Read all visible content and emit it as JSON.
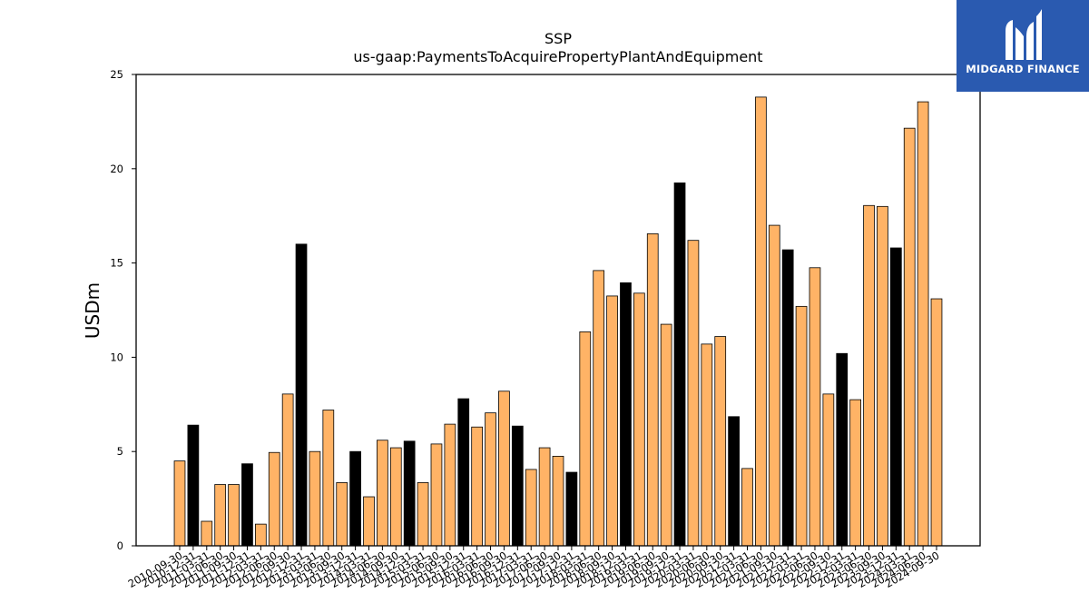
{
  "chart_data": {
    "type": "bar",
    "title": "SSP",
    "subtitle": "us-gaap:PaymentsToAcquirePropertyPlantAndEquipment",
    "xlabel": "",
    "ylabel": "USDm",
    "ylim": [
      0,
      25
    ],
    "yticks": [
      0,
      5,
      10,
      15,
      20,
      25
    ],
    "grid": false,
    "legend": "none",
    "colors": {
      "quarter": "#ffb366",
      "fiscal_year": "#000000",
      "edge": "#000000"
    },
    "categories": [
      "2010-09-30",
      "2010-12-31",
      "2011-03-31",
      "2011-06-30",
      "2011-09-30",
      "2011-12-31",
      "2012-03-31",
      "2012-06-30",
      "2012-09-30",
      "2012-12-31",
      "2013-03-31",
      "2013-06-30",
      "2013-09-30",
      "2013-12-31",
      "2014-03-31",
      "2014-06-30",
      "2014-09-30",
      "2014-12-31",
      "2015-03-31",
      "2015-06-30",
      "2015-09-30",
      "2015-12-31",
      "2016-03-31",
      "2016-06-30",
      "2016-09-30",
      "2016-12-31",
      "2017-03-31",
      "2017-06-30",
      "2017-09-30",
      "2017-12-31",
      "2018-03-31",
      "2018-06-30",
      "2018-09-30",
      "2018-12-31",
      "2019-03-31",
      "2019-06-30",
      "2019-09-30",
      "2019-12-31",
      "2020-03-31",
      "2020-06-30",
      "2020-09-30",
      "2020-12-31",
      "2021-03-31",
      "2021-06-30",
      "2021-09-30",
      "2021-12-31",
      "2022-03-31",
      "2022-06-30",
      "2022-09-30",
      "2022-12-31",
      "2023-03-31",
      "2023-06-30",
      "2023-09-30",
      "2023-12-31",
      "2024-03-31",
      "2024-06-30",
      "2024-09-30"
    ],
    "values": [
      4.5,
      6.4,
      1.3,
      3.25,
      3.25,
      4.35,
      1.15,
      4.95,
      8.05,
      16.0,
      5.0,
      7.2,
      3.35,
      5.0,
      2.6,
      5.6,
      5.2,
      5.55,
      3.35,
      5.4,
      6.45,
      7.8,
      6.3,
      7.05,
      8.2,
      6.35,
      4.05,
      5.2,
      4.75,
      3.9,
      11.35,
      14.6,
      13.25,
      13.95,
      13.4,
      16.55,
      11.75,
      19.25,
      16.2,
      10.7,
      11.1,
      6.85,
      4.1,
      23.8,
      17.0,
      15.7,
      12.7,
      14.75,
      8.05,
      10.2,
      7.75,
      18.05,
      18.0,
      15.8,
      22.15,
      23.55,
      13.1
    ],
    "highlight": [
      "quarter",
      "fiscal_year",
      "quarter",
      "quarter",
      "quarter",
      "fiscal_year",
      "quarter",
      "quarter",
      "quarter",
      "fiscal_year",
      "quarter",
      "quarter",
      "quarter",
      "fiscal_year",
      "quarter",
      "quarter",
      "quarter",
      "fiscal_year",
      "quarter",
      "quarter",
      "quarter",
      "fiscal_year",
      "quarter",
      "quarter",
      "quarter",
      "fiscal_year",
      "quarter",
      "quarter",
      "quarter",
      "fiscal_year",
      "quarter",
      "quarter",
      "quarter",
      "fiscal_year",
      "quarter",
      "quarter",
      "quarter",
      "fiscal_year",
      "quarter",
      "quarter",
      "quarter",
      "fiscal_year",
      "quarter",
      "quarter",
      "quarter",
      "fiscal_year",
      "quarter",
      "quarter",
      "quarter",
      "fiscal_year",
      "quarter",
      "quarter",
      "quarter",
      "fiscal_year",
      "quarter",
      "quarter",
      "quarter"
    ]
  },
  "logo": {
    "text": "MIDGARD FINANCE",
    "icon": "midgard-logo-icon"
  }
}
